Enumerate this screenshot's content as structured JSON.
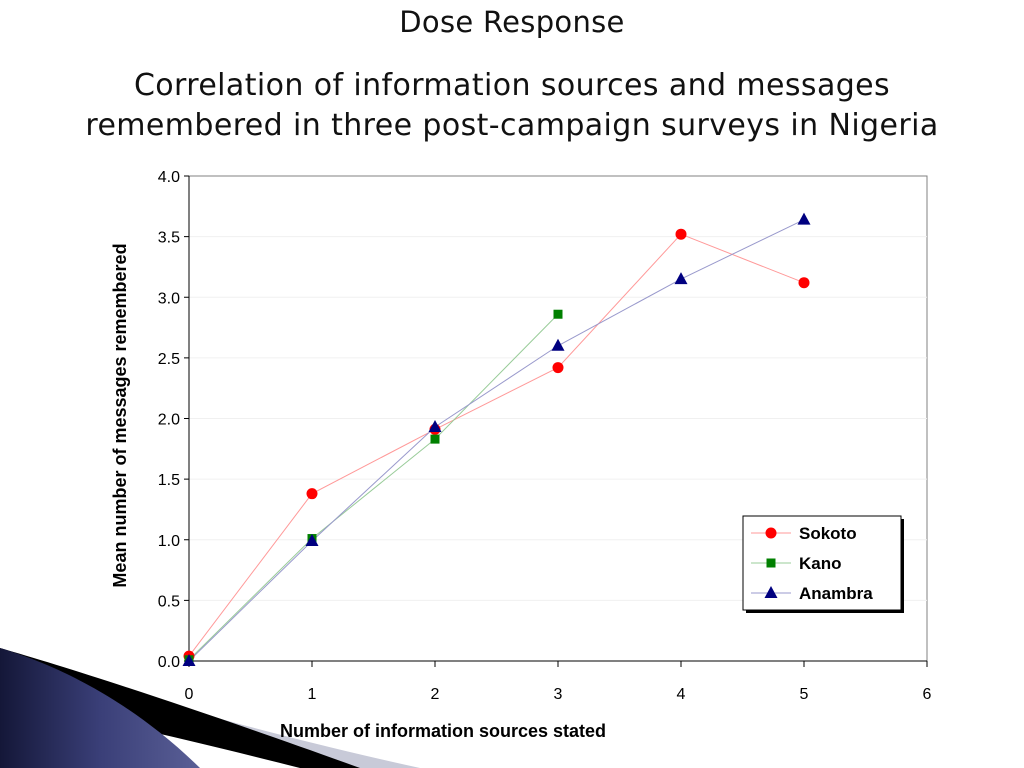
{
  "slide": {
    "title": "Dose Response",
    "subtitle_line1": "Correlation of information sources and messages",
    "subtitle_line2": "remembered in three post-campaign surveys in Nigeria"
  },
  "chart_data": {
    "type": "line",
    "title": "",
    "xlabel": "Number of information sources stated",
    "ylabel": "Mean number of messages remembered",
    "xlim": [
      0,
      6
    ],
    "ylim": [
      0,
      4
    ],
    "x_ticks": [
      "0",
      "1",
      "2",
      "3",
      "4",
      "5",
      "6"
    ],
    "y_ticks": [
      "0.0",
      "0.5",
      "1.0",
      "1.5",
      "2.0",
      "2.5",
      "3.0",
      "3.5",
      "4.0"
    ],
    "grid": "horizontal",
    "legend_position": "bottom-right",
    "series": [
      {
        "name": "Sokoto",
        "marker": "circle",
        "color": "#ff0000",
        "line_color": "#ff9999",
        "x": [
          0,
          1,
          2,
          3,
          4,
          5
        ],
        "y": [
          0.04,
          1.38,
          1.91,
          2.42,
          3.52,
          3.12
        ]
      },
      {
        "name": "Kano",
        "marker": "square",
        "color": "#008000",
        "line_color": "#99cc99",
        "x": [
          0,
          1,
          2,
          3
        ],
        "y": [
          0.01,
          1.01,
          1.83,
          2.86
        ]
      },
      {
        "name": "Anambra",
        "marker": "triangle",
        "color": "#000080",
        "line_color": "#9999cc",
        "x": [
          0,
          1,
          2,
          3,
          4,
          5
        ],
        "y": [
          0.0,
          0.99,
          1.93,
          2.6,
          3.15,
          3.64
        ]
      }
    ]
  },
  "decor": {
    "swoosh_dark": "#1c1f4f",
    "swoosh_light": "#c8cad8"
  }
}
